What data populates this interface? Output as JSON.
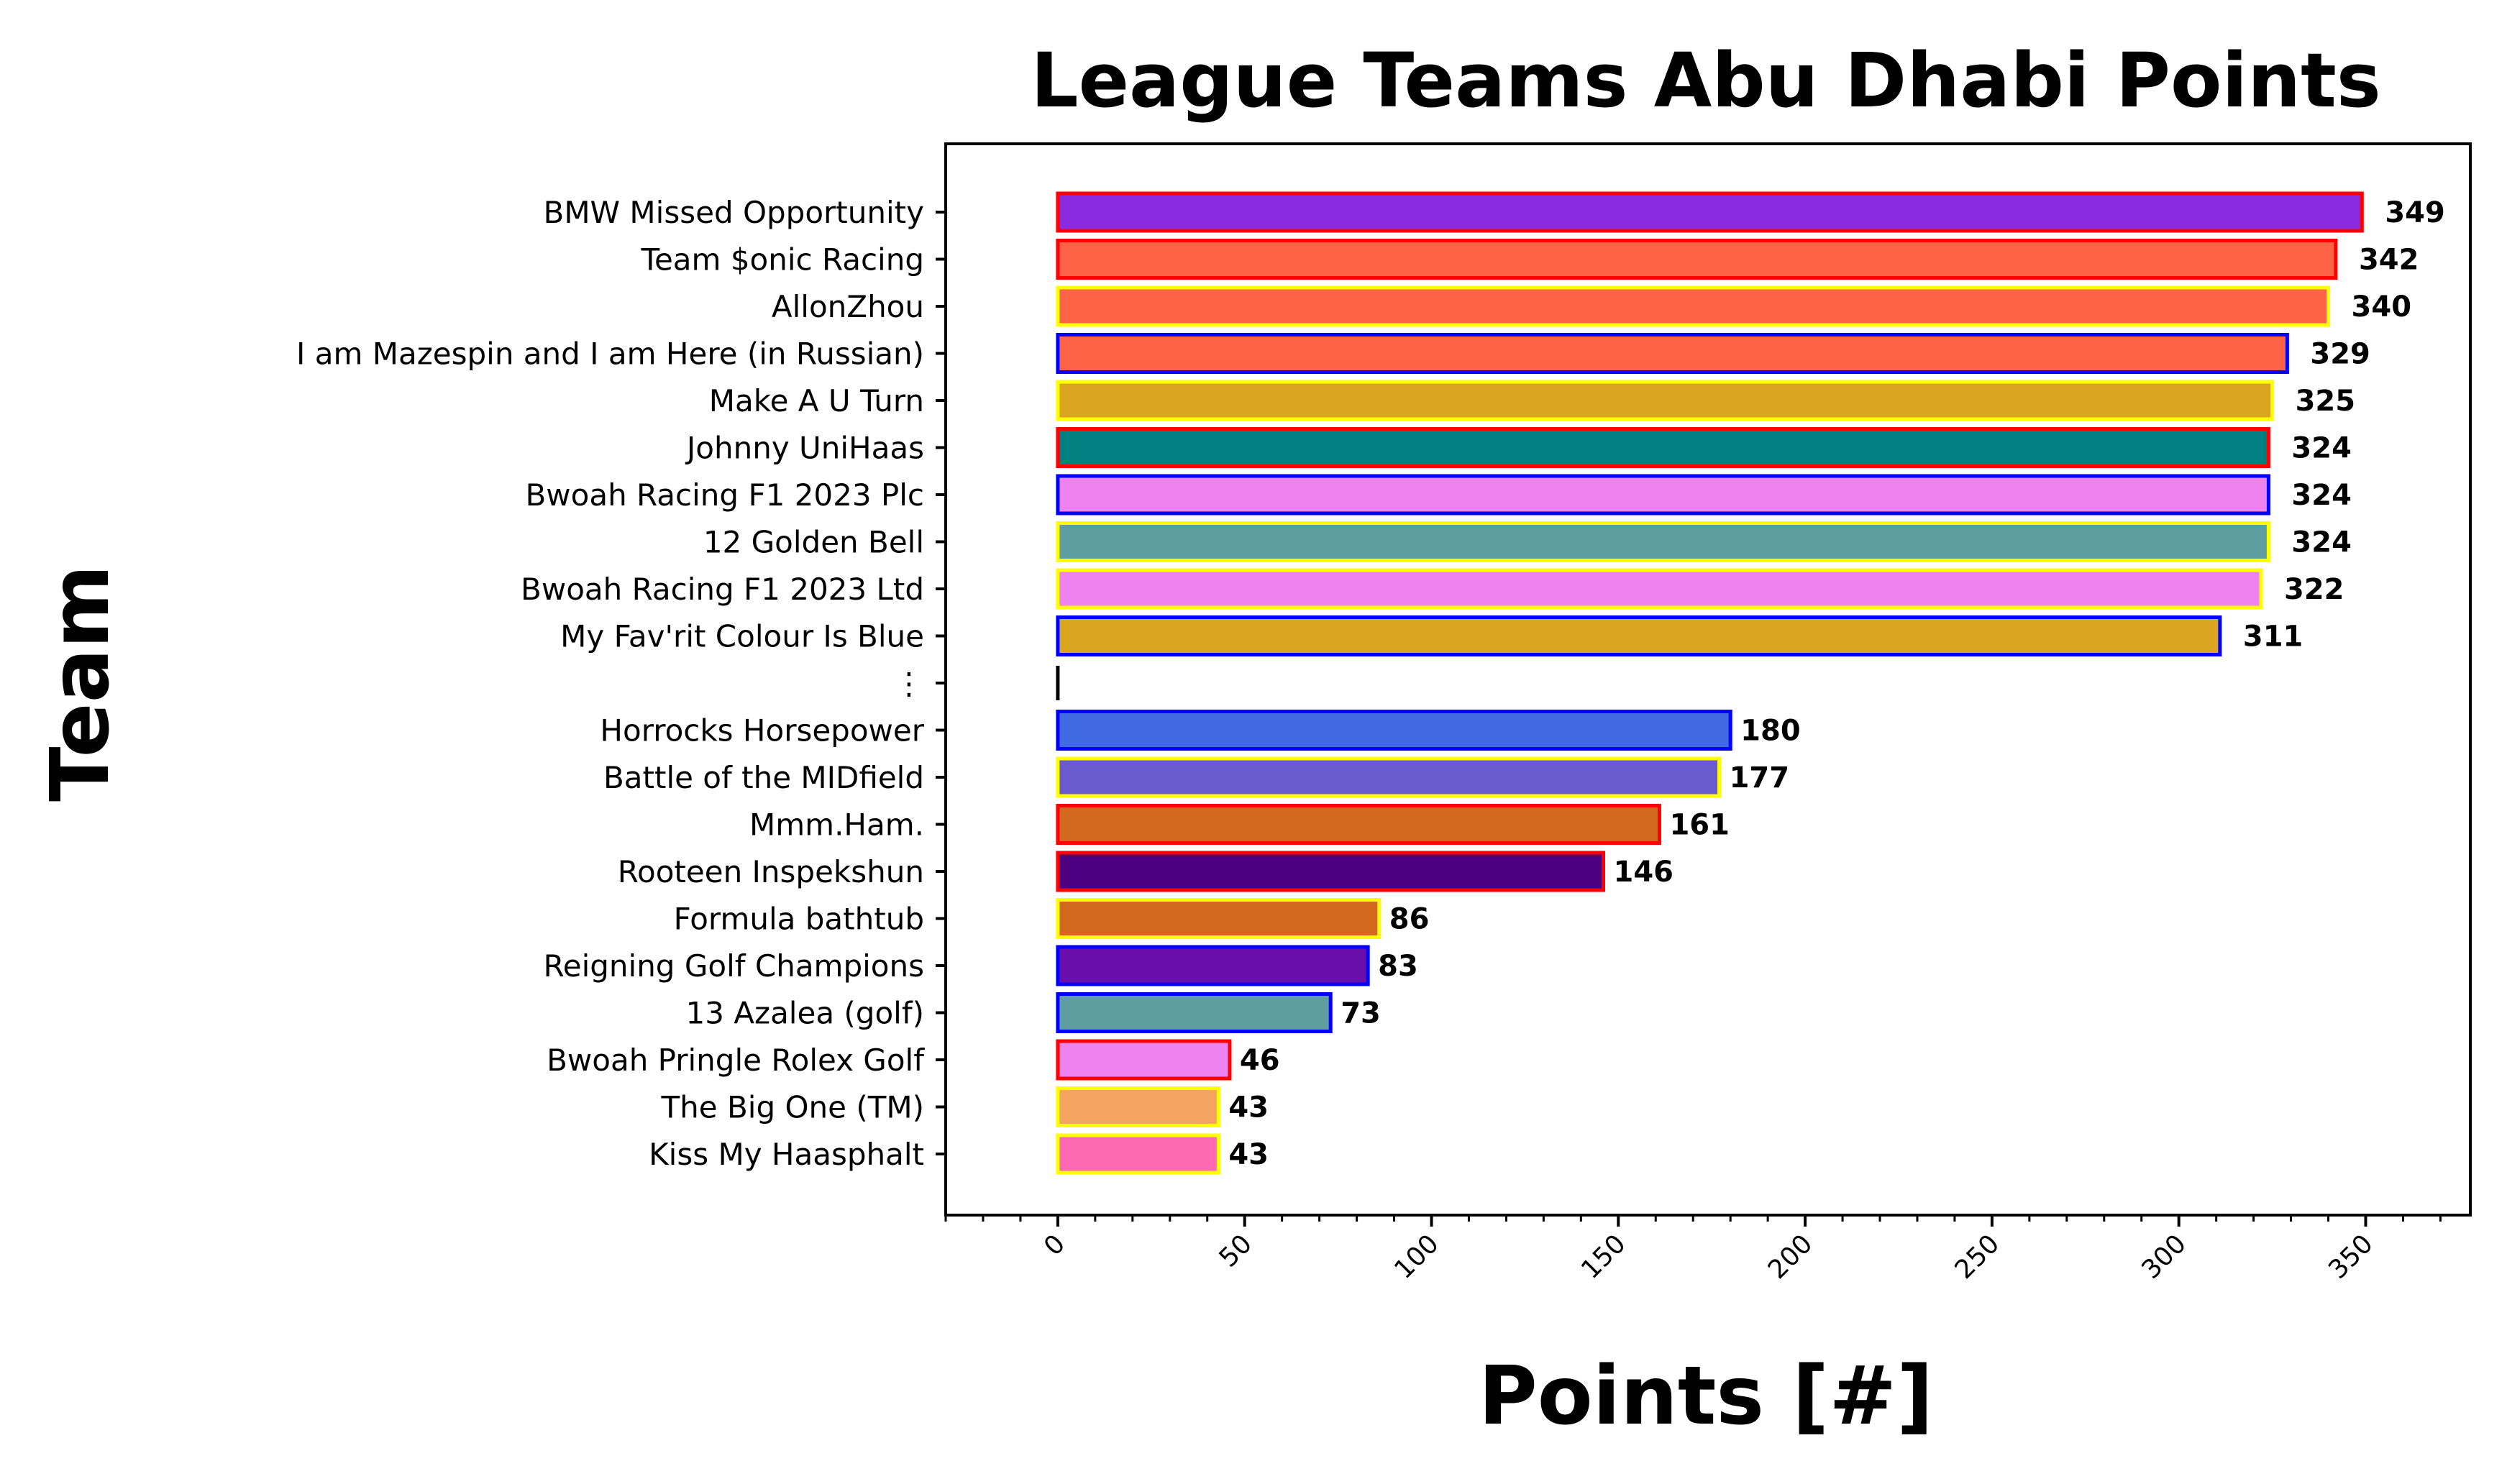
{
  "chart_data": {
    "type": "bar",
    "orientation": "horizontal",
    "title": "League Teams Abu Dhabi Points",
    "xlabel": "Points [#]",
    "ylabel": "Team",
    "xlim": [
      -30,
      378
    ],
    "xticks": [
      0,
      50,
      100,
      150,
      200,
      250,
      300,
      350
    ],
    "xtick_rotation": 45,
    "minor_ticks_step": 10,
    "grid": false,
    "bars": [
      {
        "label": "BMW Missed Opportunity",
        "value": 349,
        "fill": "#8A2BE2",
        "edge": "#FF0000"
      },
      {
        "label": "Team $onic Racing",
        "value": 342,
        "fill": "#FF6347",
        "edge": "#FF0000"
      },
      {
        "label": "AllonZhou",
        "value": 340,
        "fill": "#FF6347",
        "edge": "#FFFF00"
      },
      {
        "label": "I am Mazespin and I am Here (in Russian)",
        "value": 329,
        "fill": "#FF6347",
        "edge": "#0000FF"
      },
      {
        "label": "Make A U Turn",
        "value": 325,
        "fill": "#DAA520",
        "edge": "#FFFF00"
      },
      {
        "label": "Johnny UniHaas",
        "value": 324,
        "fill": "#008080",
        "edge": "#FF0000"
      },
      {
        "label": "Bwoah Racing F1 2023 Plc",
        "value": 324,
        "fill": "#EE82EE",
        "edge": "#0000FF"
      },
      {
        "label": "12 Golden Bell",
        "value": 324,
        "fill": "#5F9EA0",
        "edge": "#FFFF00"
      },
      {
        "label": "Bwoah Racing F1 2023 Ltd",
        "value": 322,
        "fill": "#EE82EE",
        "edge": "#FFFF00"
      },
      {
        "label": "My Fav'rit Colour Is Blue",
        "value": 311,
        "fill": "#DAA520",
        "edge": "#0000FF"
      },
      {
        "label": "⋮",
        "value": 0,
        "fill": "#000000",
        "edge": "#000000",
        "separator": true
      },
      {
        "label": "Horrocks Horsepower",
        "value": 180,
        "fill": "#4169E1",
        "edge": "#0000FF"
      },
      {
        "label": "Battle of the MIDfield",
        "value": 177,
        "fill": "#6A5ACD",
        "edge": "#FFFF00"
      },
      {
        "label": "Mmm.Ham.",
        "value": 161,
        "fill": "#D2691E",
        "edge": "#FF0000"
      },
      {
        "label": "Rooteen Inspekshun",
        "value": 146,
        "fill": "#4B0082",
        "edge": "#FF0000"
      },
      {
        "label": "Formula bathtub",
        "value": 86,
        "fill": "#D2691E",
        "edge": "#FFFF00"
      },
      {
        "label": "Reigning Golf Champions",
        "value": 83,
        "fill": "#6A0DAD",
        "edge": "#0000FF"
      },
      {
        "label": "13 Azalea (golf)",
        "value": 73,
        "fill": "#5F9EA0",
        "edge": "#0000FF"
      },
      {
        "label": "Bwoah Pringle Rolex Golf",
        "value": 46,
        "fill": "#EE82EE",
        "edge": "#FF0000"
      },
      {
        "label": "The Big One (TM)",
        "value": 43,
        "fill": "#F4A460",
        "edge": "#FFFF00"
      },
      {
        "label": "Kiss My Haasphalt",
        "value": 43,
        "fill": "#FF69B4",
        "edge": "#FFFF00"
      }
    ]
  }
}
